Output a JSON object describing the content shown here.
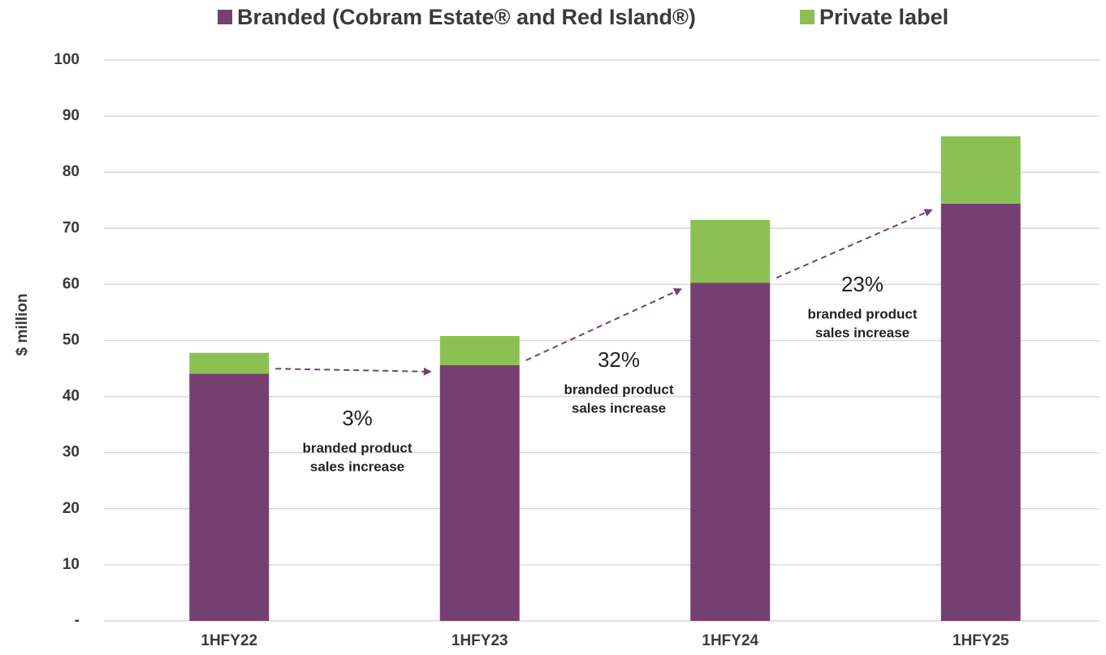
{
  "chart_data": {
    "type": "stacked_bar",
    "y_label": "$ million",
    "categories": [
      "1HFY22",
      "1HFY23",
      "1HFY24",
      "1HFY25"
    ],
    "series": [
      {
        "name": "Branded (Cobram Estate® and Red Island®)",
        "color": "#763f72",
        "values": [
          44.1,
          45.6,
          60.3,
          74.4
        ]
      },
      {
        "name": "Private label",
        "color": "#8bc153",
        "values": [
          3.7,
          5.2,
          11.2,
          12.0
        ]
      }
    ],
    "ylim": [
      0,
      100
    ],
    "yticks": [
      {
        "value": 0,
        "label": "-"
      },
      10,
      20,
      30,
      40,
      50,
      60,
      70,
      80,
      90,
      100
    ],
    "grid": true,
    "legend": "top",
    "annotations": [
      {
        "value": "3%",
        "lines": [
          "branded product",
          "sales increase"
        ]
      },
      {
        "value": "32%",
        "lines": [
          "branded product",
          "sales increase"
        ]
      },
      {
        "value": "23%",
        "lines": [
          "branded product",
          "sales increase"
        ]
      }
    ]
  }
}
